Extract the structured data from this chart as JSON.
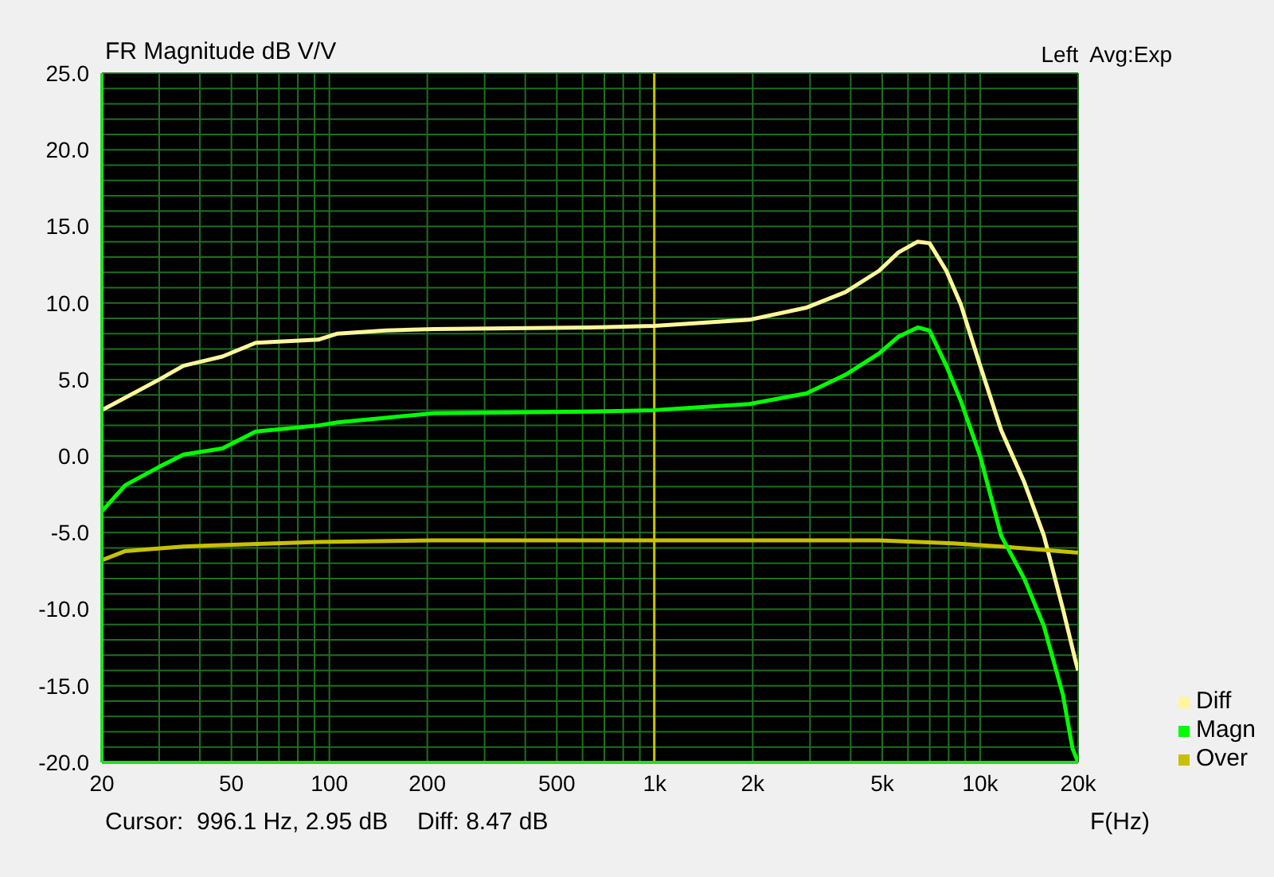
{
  "chart_data": {
    "type": "line",
    "title": "FR Magnitude dB V/V",
    "xlabel": "F(Hz)",
    "annotations": [
      "Left  Avg:Exp",
      "Cursor:  996.1 Hz, 2.95 dB",
      "Diff: 8.47 dB"
    ],
    "log": "x",
    "grid": true,
    "legend": "bottom right",
    "marker": "none",
    "line_style": "solid",
    "xlim": [
      20,
      20000
    ],
    "xticks": [
      20,
      {
        "value": 30,
        "label": null
      },
      {
        "value": 40,
        "label": null
      },
      50,
      {
        "value": 60,
        "label": null
      },
      {
        "value": 70,
        "label": null
      },
      {
        "value": 80,
        "label": null
      },
      {
        "value": 90,
        "label": null
      },
      100,
      200,
      {
        "value": 300,
        "label": null
      },
      {
        "value": 400,
        "label": null
      },
      500,
      {
        "value": 600,
        "label": null
      },
      {
        "value": 700,
        "label": null
      },
      {
        "value": 800,
        "label": null
      },
      {
        "value": 900,
        "label": null
      },
      {
        "value": 1000,
        "label": "1k"
      },
      {
        "value": 2000,
        "label": "2k"
      },
      {
        "value": 3000,
        "label": null
      },
      {
        "value": 4000,
        "label": null
      },
      {
        "value": 5000,
        "label": "5k"
      },
      {
        "value": 6000,
        "label": null
      },
      {
        "value": 7000,
        "label": null
      },
      {
        "value": 8000,
        "label": null
      },
      {
        "value": 9000,
        "label": null
      },
      {
        "value": 10000,
        "label": "10k"
      },
      {
        "value": 20000,
        "label": "20k"
      }
    ],
    "ylim": [
      -20,
      25
    ],
    "yticks": [
      {
        "value": -20,
        "label": "-20.0"
      },
      {
        "value": -19,
        "label": null
      },
      {
        "value": -18,
        "label": null
      },
      {
        "value": -17,
        "label": null
      },
      {
        "value": -16,
        "label": null
      },
      {
        "value": -15,
        "label": "-15.0"
      },
      {
        "value": -14,
        "label": null
      },
      {
        "value": -13,
        "label": null
      },
      {
        "value": -12,
        "label": null
      },
      {
        "value": -11,
        "label": null
      },
      {
        "value": -10,
        "label": "-10.0"
      },
      {
        "value": -9,
        "label": null
      },
      {
        "value": -8,
        "label": null
      },
      {
        "value": -7,
        "label": null
      },
      {
        "value": -6,
        "label": null
      },
      {
        "value": -5,
        "label": "-5.0"
      },
      {
        "value": -4,
        "label": null
      },
      {
        "value": -3,
        "label": null
      },
      {
        "value": -2,
        "label": null
      },
      {
        "value": -1,
        "label": null
      },
      {
        "value": 0,
        "label": "0.0"
      },
      {
        "value": 1,
        "label": null
      },
      {
        "value": 2,
        "label": null
      },
      {
        "value": 3,
        "label": null
      },
      {
        "value": 4,
        "label": null
      },
      {
        "value": 5,
        "label": "5.0"
      },
      {
        "value": 6,
        "label": null
      },
      {
        "value": 7,
        "label": null
      },
      {
        "value": 8,
        "label": null
      },
      {
        "value": 9,
        "label": null
      },
      {
        "value": 10,
        "label": "10.0"
      },
      {
        "value": 11,
        "label": null
      },
      {
        "value": 12,
        "label": null
      },
      {
        "value": 13,
        "label": null
      },
      {
        "value": 14,
        "label": null
      },
      {
        "value": 15,
        "label": "15.0"
      },
      {
        "value": 16,
        "label": null
      },
      {
        "value": 17,
        "label": null
      },
      {
        "value": 18,
        "label": null
      },
      {
        "value": 19,
        "label": null
      },
      {
        "value": 20,
        "label": "20.0"
      },
      {
        "value": 21,
        "label": null
      },
      {
        "value": 22,
        "label": null
      },
      {
        "value": 23,
        "label": null
      },
      {
        "value": 24,
        "label": null
      },
      {
        "value": 25,
        "label": "25.0"
      }
    ],
    "ref_lines": [
      {
        "axis": "x",
        "value": 996.1,
        "color": "#c8c000"
      }
    ],
    "series": [
      {
        "name": "Diff",
        "color": "#fff799",
        "x": [
          20,
          30,
          35.6,
          46.9,
          59.4,
          92.4,
          106,
          149,
          209,
          627,
          996,
          1950,
          2930,
          3850,
          4890,
          5610,
          6430,
          6990,
          7870,
          8720,
          10000,
          11600,
          13660,
          15700,
          17970,
          19700,
          20000
        ],
        "values": [
          3.0,
          5.0,
          5.9,
          6.5,
          7.4,
          7.6,
          8.0,
          8.2,
          8.3,
          8.4,
          8.5,
          8.9,
          9.7,
          10.7,
          12.1,
          13.3,
          14.0,
          13.9,
          12.1,
          9.9,
          5.9,
          1.7,
          -1.7,
          -5.2,
          -10.0,
          -13.5,
          -14.0
        ]
      },
      {
        "name": "Over",
        "color": "#c8c000",
        "x": [
          20,
          23.6,
          35.6,
          92.4,
          209,
          996,
          4890,
          8260,
          11600,
          19700,
          20000
        ],
        "values": [
          -6.8,
          -6.2,
          -5.9,
          -5.6,
          -5.5,
          -5.5,
          -5.5,
          -5.7,
          -5.9,
          -6.3,
          -6.3
        ]
      },
      {
        "name": "Magn",
        "color": "#00ff00",
        "x": [
          20,
          23.6,
          30,
          35.6,
          46.9,
          59.4,
          92.4,
          106,
          149,
          209,
          627,
          996,
          1950,
          2930,
          3850,
          4890,
          5610,
          6430,
          6990,
          7870,
          8720,
          10000,
          11600,
          13660,
          15700,
          17970,
          19220,
          20000
        ],
        "values": [
          -3.6,
          -1.9,
          -0.7,
          0.1,
          0.5,
          1.6,
          2.0,
          2.2,
          2.5,
          2.8,
          2.9,
          3.0,
          3.4,
          4.1,
          5.3,
          6.7,
          7.8,
          8.4,
          8.2,
          5.9,
          3.6,
          0.0,
          -5.2,
          -8.0,
          -11.1,
          -15.6,
          -19.1,
          -20.0
        ]
      }
    ]
  }
}
